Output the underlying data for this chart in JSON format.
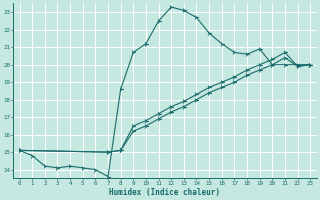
{
  "xlabel": "Humidex (Indice chaleur)",
  "bg_color": "#c5e8e0",
  "grid_color": "#ffffff",
  "line_color": "#1a6b6b",
  "xlim": [
    -0.5,
    23.5
  ],
  "ylim": [
    13.5,
    23.5
  ],
  "xticks": [
    0,
    1,
    2,
    3,
    4,
    5,
    6,
    7,
    8,
    9,
    10,
    11,
    12,
    13,
    14,
    15,
    16,
    17,
    18,
    19,
    20,
    21,
    22,
    23
  ],
  "yticks": [
    14,
    15,
    16,
    17,
    18,
    19,
    20,
    21,
    22,
    23
  ],
  "curve1_x": [
    0,
    1,
    2,
    3,
    4,
    5,
    6,
    7,
    8,
    9,
    10,
    11,
    12,
    13,
    14,
    15,
    16,
    17,
    18,
    19,
    20,
    21,
    22,
    23
  ],
  "curve1_y": [
    15.1,
    14.8,
    14.2,
    14.1,
    14.2,
    14.1,
    14.0,
    13.6,
    18.6,
    20.7,
    21.2,
    22.5,
    23.3,
    23.1,
    22.7,
    21.8,
    21.2,
    20.7,
    20.6,
    20.9,
    20.0,
    20.0,
    20.0,
    20.0
  ],
  "curve2_x": [
    0,
    7,
    8,
    9,
    10,
    11,
    12,
    13,
    14,
    15,
    16,
    17,
    18,
    19,
    20,
    21,
    22,
    23
  ],
  "curve2_y": [
    15.1,
    15.0,
    15.1,
    16.5,
    16.8,
    17.2,
    17.6,
    17.9,
    18.3,
    18.7,
    19.0,
    19.3,
    19.7,
    20.0,
    20.3,
    20.7,
    19.9,
    20.0
  ],
  "curve3_x": [
    0,
    7,
    8,
    9,
    10,
    11,
    12,
    13,
    14,
    15,
    16,
    17,
    18,
    19,
    20,
    21,
    22,
    23
  ],
  "curve3_y": [
    15.1,
    15.0,
    15.1,
    16.2,
    16.5,
    16.9,
    17.3,
    17.6,
    18.0,
    18.4,
    18.7,
    19.0,
    19.4,
    19.7,
    20.0,
    20.4,
    19.9,
    20.0
  ]
}
